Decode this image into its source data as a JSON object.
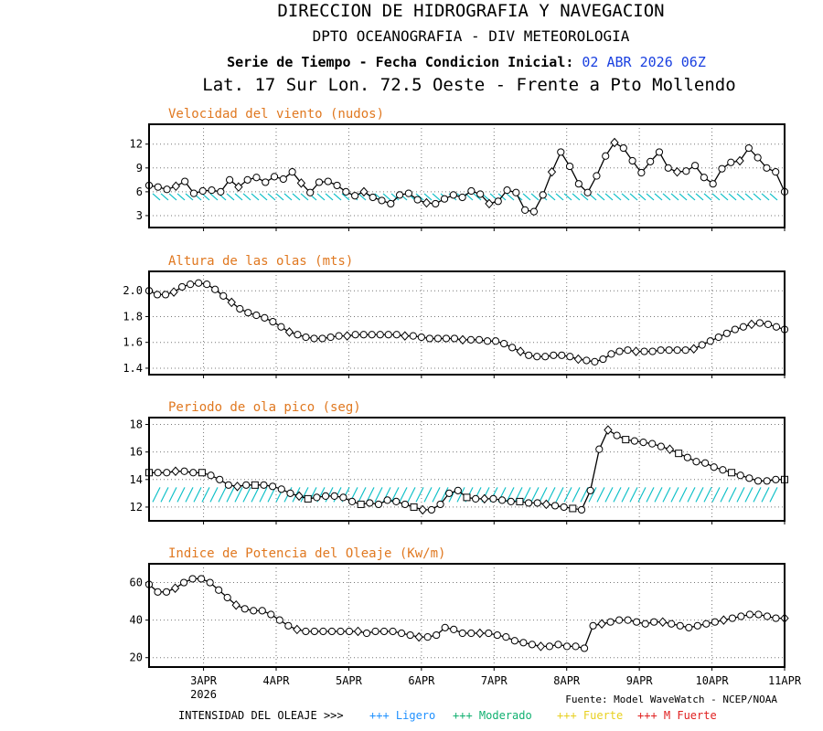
{
  "header": {
    "line1": "DIRECCION DE HIDROGRAFIA Y NAVEGACION",
    "line2": "DPTO OCEANOGRAFIA - DIV METEOROLOGIA",
    "line3_label": "Serie de Tiempo - Fecha Condicion Inicial:",
    "line3_date": "02 ABR 2026 06Z",
    "line4": "Lat. 17 Sur  Lon. 72.5 Oeste - Frente a Pto Mollendo"
  },
  "footer": {
    "source": "Fuente: Model WaveWatch - NCEP/NOAA",
    "intensity_label": "INTENSIDAD DEL OLEAJE >>>",
    "legend": [
      {
        "symbol": "+++",
        "label": "Ligero",
        "color": "#1e90ff"
      },
      {
        "symbol": "+++",
        "label": "Moderado",
        "color": "#10b070"
      },
      {
        "symbol": "+++",
        "label": "Fuerte",
        "color": "#e8d020"
      },
      {
        "symbol": "+++",
        "label": "M Fuerte",
        "color": "#e02020"
      }
    ]
  },
  "colors": {
    "title": "#e07820",
    "date": "#1a40e0",
    "arrows": "#10c0c8",
    "line": "#000000"
  },
  "chart_data": [
    {
      "type": "line",
      "title": "Velocidad del viento (nudos)",
      "ylim": [
        1.5,
        14.5
      ],
      "yticks": [
        3,
        6,
        9,
        12
      ],
      "xlim": [
        0,
        105
      ],
      "xticks": [
        {
          "x": 9,
          "label": "3APR",
          "sub": "2026"
        },
        {
          "x": 21,
          "label": "4APR"
        },
        {
          "x": 33,
          "label": "5APR"
        },
        {
          "x": 45,
          "label": "6APR"
        },
        {
          "x": 57,
          "label": "7APR"
        },
        {
          "x": 69,
          "label": "8APR"
        },
        {
          "x": 81,
          "label": "9APR"
        },
        {
          "x": 93,
          "label": "10APR"
        },
        {
          "x": 105,
          "label": "11APR"
        }
      ],
      "grid": true,
      "arrows": true,
      "arrow_level": 5.3,
      "values": [
        6.8,
        6.6,
        6.3,
        6.7,
        7.3,
        5.8,
        6.1,
        6.2,
        6.0,
        7.5,
        6.6,
        7.5,
        7.8,
        7.2,
        7.9,
        7.6,
        8.5,
        7.1,
        5.9,
        7.2,
        7.3,
        6.8,
        6.0,
        5.5,
        6.0,
        5.3,
        4.9,
        4.5,
        5.6,
        5.8,
        5.0,
        4.6,
        4.5,
        5.1,
        5.6,
        5.3,
        6.1,
        5.7,
        4.5,
        4.8,
        6.2,
        5.9,
        3.7,
        3.5,
        5.6,
        8.5,
        11.0,
        9.2,
        7.0,
        5.9,
        8.0,
        10.5,
        12.2,
        11.5,
        9.9,
        8.4,
        9.8,
        11.0,
        9.0,
        8.5,
        8.6,
        9.3,
        7.8,
        7.0,
        8.9,
        9.7,
        9.9,
        11.5,
        10.3,
        9.0,
        8.5,
        6.0
      ]
    },
    {
      "type": "line",
      "title": "Altura de las olas (mts)",
      "ylim": [
        1.35,
        2.15
      ],
      "yticks": [
        1.4,
        1.6,
        1.8,
        2.0
      ],
      "ytick_labels": [
        "1.4",
        "1.6",
        "1.8",
        "2.0"
      ],
      "xlim": [
        0,
        105
      ],
      "grid": true,
      "arrows": false,
      "values": [
        2.0,
        1.97,
        1.97,
        1.99,
        2.03,
        2.05,
        2.06,
        2.05,
        2.01,
        1.96,
        1.91,
        1.86,
        1.83,
        1.81,
        1.79,
        1.76,
        1.72,
        1.68,
        1.66,
        1.64,
        1.63,
        1.63,
        1.64,
        1.65,
        1.65,
        1.66,
        1.66,
        1.66,
        1.66,
        1.66,
        1.66,
        1.65,
        1.65,
        1.64,
        1.63,
        1.63,
        1.63,
        1.63,
        1.62,
        1.62,
        1.62,
        1.61,
        1.61,
        1.59,
        1.56,
        1.53,
        1.5,
        1.49,
        1.49,
        1.5,
        1.5,
        1.49,
        1.47,
        1.46,
        1.45,
        1.47,
        1.51,
        1.53,
        1.54,
        1.53,
        1.53,
        1.53,
        1.54,
        1.54,
        1.54,
        1.54,
        1.55,
        1.58,
        1.61,
        1.64,
        1.67,
        1.7,
        1.72,
        1.74,
        1.75,
        1.74,
        1.72,
        1.7
      ]
    },
    {
      "type": "line",
      "title": "Periodo de ola pico (seg)",
      "ylim": [
        11,
        18.5
      ],
      "yticks": [
        12,
        14,
        16,
        18
      ],
      "xlim": [
        0,
        105
      ],
      "grid": true,
      "arrows": true,
      "arrow_level": 12.9,
      "values": [
        14.5,
        14.5,
        14.5,
        14.6,
        14.6,
        14.5,
        14.5,
        14.3,
        14.0,
        13.6,
        13.5,
        13.6,
        13.6,
        13.6,
        13.5,
        13.3,
        13.0,
        12.8,
        12.6,
        12.7,
        12.8,
        12.8,
        12.7,
        12.4,
        12.2,
        12.3,
        12.2,
        12.5,
        12.4,
        12.2,
        12.0,
        11.8,
        11.8,
        12.2,
        13.0,
        13.2,
        12.7,
        12.6,
        12.6,
        12.6,
        12.5,
        12.4,
        12.4,
        12.3,
        12.3,
        12.2,
        12.1,
        12.0,
        11.9,
        11.8,
        13.2,
        16.2,
        17.6,
        17.2,
        16.9,
        16.8,
        16.7,
        16.6,
        16.4,
        16.2,
        15.9,
        15.6,
        15.3,
        15.2,
        14.9,
        14.7,
        14.5,
        14.3,
        14.1,
        13.9,
        13.9,
        14.0,
        14.0
      ]
    },
    {
      "type": "line",
      "title": "Indice de Potencia del Oleaje (Kw/m)",
      "ylim": [
        15,
        70
      ],
      "yticks": [
        20,
        40,
        60
      ],
      "xlim": [
        0,
        105
      ],
      "grid": true,
      "arrows": false,
      "values": [
        59,
        55,
        55,
        57,
        60,
        62,
        62,
        60,
        56,
        52,
        48,
        46,
        45,
        45,
        43,
        40,
        37,
        35,
        34,
        34,
        34,
        34,
        34,
        34,
        34,
        33,
        34,
        34,
        34,
        33,
        32,
        31,
        31,
        32,
        36,
        35,
        33,
        33,
        33,
        33,
        32,
        31,
        29,
        28,
        27,
        26,
        26,
        27,
        26,
        26,
        25,
        37,
        38,
        39,
        40,
        40,
        39,
        38,
        39,
        39,
        38,
        37,
        36,
        37,
        38,
        39,
        40,
        41,
        42,
        43,
        43,
        42,
        41,
        41
      ]
    }
  ]
}
